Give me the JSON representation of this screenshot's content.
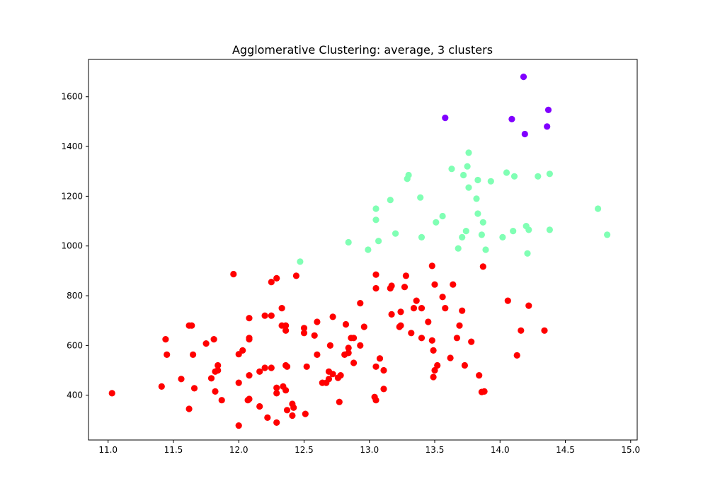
{
  "chart_data": {
    "type": "scatter",
    "title": "Agglomerative Clustering: average, 3 clusters",
    "xlabel": "",
    "ylabel": "",
    "xlim": [
      10.85,
      15.05
    ],
    "ylim": [
      220,
      1750
    ],
    "xticks": [
      11.0,
      11.5,
      12.0,
      12.5,
      13.0,
      13.5,
      14.0,
      14.5,
      15.0
    ],
    "xtick_labels": [
      "11.0",
      "11.5",
      "12.0",
      "12.5",
      "13.0",
      "13.5",
      "14.0",
      "14.5",
      "15.0"
    ],
    "yticks": [
      400,
      600,
      800,
      1000,
      1200,
      1400,
      1600
    ],
    "ytick_labels": [
      "400",
      "600",
      "800",
      "1000",
      "1200",
      "1400",
      "1600"
    ],
    "grid": false,
    "legend": "none",
    "series": [
      {
        "color": "#8000ff",
        "points": [
          [
            14.18,
            1680
          ],
          [
            14.37,
            1547
          ],
          [
            13.58,
            1515
          ],
          [
            14.09,
            1510
          ],
          [
            14.36,
            1480
          ],
          [
            14.19,
            1450
          ]
        ]
      },
      {
        "color": "#80ffb4",
        "points": [
          [
            13.76,
            1375
          ],
          [
            13.75,
            1320
          ],
          [
            13.63,
            1310
          ],
          [
            14.05,
            1295
          ],
          [
            14.38,
            1290
          ],
          [
            13.3,
            1285
          ],
          [
            13.72,
            1285
          ],
          [
            14.11,
            1280
          ],
          [
            14.29,
            1280
          ],
          [
            13.29,
            1270
          ],
          [
            13.83,
            1265
          ],
          [
            13.93,
            1260
          ],
          [
            13.76,
            1235
          ],
          [
            13.39,
            1195
          ],
          [
            13.82,
            1190
          ],
          [
            13.16,
            1185
          ],
          [
            14.75,
            1150
          ],
          [
            13.05,
            1150
          ],
          [
            13.83,
            1130
          ],
          [
            13.56,
            1120
          ],
          [
            13.05,
            1105
          ],
          [
            13.87,
            1095
          ],
          [
            13.51,
            1095
          ],
          [
            14.2,
            1080
          ],
          [
            14.22,
            1065
          ],
          [
            14.38,
            1065
          ],
          [
            13.74,
            1060
          ],
          [
            14.1,
            1060
          ],
          [
            13.2,
            1050
          ],
          [
            13.86,
            1045
          ],
          [
            14.82,
            1045
          ],
          [
            13.4,
            1035
          ],
          [
            13.71,
            1035
          ],
          [
            14.02,
            1035
          ],
          [
            13.07,
            1020
          ],
          [
            12.84,
            1015
          ],
          [
            13.68,
            990
          ],
          [
            12.99,
            985
          ],
          [
            13.89,
            985
          ],
          [
            14.21,
            970
          ],
          [
            12.47,
            937
          ]
        ]
      },
      {
        "color": "#ff0000",
        "points": [
          [
            11.03,
            408
          ],
          [
            11.41,
            435
          ],
          [
            11.44,
            625
          ],
          [
            11.45,
            563
          ],
          [
            11.56,
            465
          ],
          [
            11.62,
            680
          ],
          [
            11.62,
            345
          ],
          [
            11.64,
            680
          ],
          [
            11.65,
            563
          ],
          [
            11.66,
            428
          ],
          [
            11.75,
            608
          ],
          [
            11.79,
            468
          ],
          [
            11.81,
            625
          ],
          [
            11.82,
            415
          ],
          [
            11.82,
            495
          ],
          [
            11.84,
            520
          ],
          [
            11.84,
            500
          ],
          [
            11.87,
            380
          ],
          [
            11.96,
            887
          ],
          [
            12.0,
            565
          ],
          [
            12.0,
            450
          ],
          [
            12.0,
            278
          ],
          [
            12.03,
            580
          ],
          [
            12.07,
            380
          ],
          [
            12.08,
            710
          ],
          [
            12.08,
            625
          ],
          [
            12.08,
            630
          ],
          [
            12.08,
            480
          ],
          [
            12.08,
            385
          ],
          [
            12.16,
            355
          ],
          [
            12.16,
            495
          ],
          [
            12.2,
            720
          ],
          [
            12.2,
            510
          ],
          [
            12.22,
            310
          ],
          [
            12.25,
            510
          ],
          [
            12.25,
            720
          ],
          [
            12.25,
            855
          ],
          [
            12.29,
            870
          ],
          [
            12.29,
            408
          ],
          [
            12.29,
            430
          ],
          [
            12.29,
            290
          ],
          [
            12.33,
            750
          ],
          [
            12.33,
            680
          ],
          [
            12.34,
            435
          ],
          [
            12.36,
            680
          ],
          [
            12.36,
            520
          ],
          [
            12.36,
            660
          ],
          [
            12.37,
            515
          ],
          [
            12.36,
            420
          ],
          [
            12.37,
            340
          ],
          [
            12.41,
            318
          ],
          [
            12.41,
            365
          ],
          [
            12.42,
            350
          ],
          [
            12.44,
            880
          ],
          [
            12.5,
            650
          ],
          [
            12.5,
            670
          ],
          [
            12.51,
            325
          ],
          [
            12.52,
            515
          ],
          [
            12.58,
            640
          ],
          [
            12.6,
            695
          ],
          [
            12.6,
            563
          ],
          [
            12.64,
            450
          ],
          [
            12.67,
            450
          ],
          [
            12.69,
            495
          ],
          [
            12.69,
            465
          ],
          [
            12.7,
            600
          ],
          [
            12.72,
            715
          ],
          [
            12.72,
            485
          ],
          [
            12.76,
            470
          ],
          [
            12.77,
            373
          ],
          [
            12.78,
            480
          ],
          [
            12.81,
            563
          ],
          [
            12.82,
            685
          ],
          [
            12.84,
            590
          ],
          [
            12.84,
            570
          ],
          [
            12.86,
            630
          ],
          [
            12.88,
            630
          ],
          [
            12.88,
            530
          ],
          [
            12.93,
            770
          ],
          [
            12.93,
            600
          ],
          [
            12.96,
            675
          ],
          [
            13.04,
            393
          ],
          [
            13.05,
            885
          ],
          [
            13.05,
            830
          ],
          [
            13.05,
            380
          ],
          [
            13.05,
            515
          ],
          [
            13.08,
            548
          ],
          [
            13.11,
            500
          ],
          [
            13.11,
            425
          ],
          [
            13.16,
            830
          ],
          [
            13.17,
            840
          ],
          [
            13.17,
            725
          ],
          [
            13.23,
            675
          ],
          [
            13.24,
            735
          ],
          [
            13.24,
            680
          ],
          [
            13.27,
            835
          ],
          [
            13.28,
            880
          ],
          [
            13.32,
            650
          ],
          [
            13.34,
            750
          ],
          [
            13.36,
            780
          ],
          [
            13.4,
            750
          ],
          [
            13.4,
            630
          ],
          [
            13.45,
            695
          ],
          [
            13.48,
            920
          ],
          [
            13.48,
            620
          ],
          [
            13.49,
            580
          ],
          [
            13.5,
            845
          ],
          [
            13.5,
            500
          ],
          [
            13.49,
            473
          ],
          [
            13.52,
            520
          ],
          [
            13.56,
            795
          ],
          [
            13.58,
            750
          ],
          [
            13.62,
            550
          ],
          [
            13.64,
            845
          ],
          [
            13.67,
            630
          ],
          [
            13.69,
            680
          ],
          [
            13.71,
            740
          ],
          [
            13.73,
            520
          ],
          [
            13.78,
            615
          ],
          [
            13.84,
            480
          ],
          [
            13.86,
            413
          ],
          [
            13.87,
            917
          ],
          [
            13.88,
            415
          ],
          [
            14.06,
            780
          ],
          [
            14.13,
            560
          ],
          [
            14.16,
            660
          ],
          [
            14.22,
            760
          ],
          [
            14.34,
            660
          ]
        ]
      }
    ]
  }
}
